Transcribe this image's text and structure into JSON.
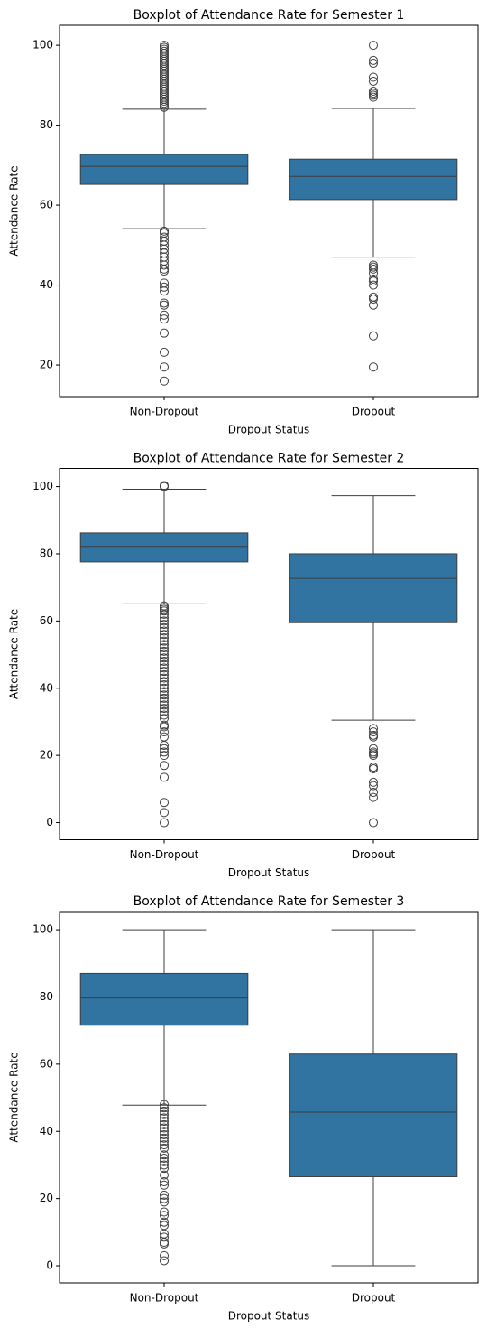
{
  "chart_data": [
    {
      "type": "box",
      "title": "Boxplot of Attendance Rate for Semester 1",
      "xlabel": "Dropout Status",
      "ylabel": "Attendance Rate",
      "categories": [
        "Non-Dropout",
        "Dropout"
      ],
      "color": "#3274a1",
      "ylim": [
        12.1,
        105
      ],
      "yticks": [
        20,
        40,
        60,
        80,
        100
      ],
      "boxes": [
        {
          "whislo": 54.1,
          "q1": 65.2,
          "median": 69.7,
          "q3": 72.7,
          "whishi": 84,
          "fliers": [
            84.5,
            85,
            85.5,
            86,
            86.5,
            87,
            87.5,
            88,
            88.5,
            89,
            89.5,
            90,
            90.5,
            91,
            91.5,
            92,
            92.5,
            93,
            93.5,
            94,
            94.5,
            95,
            95.5,
            96,
            96.5,
            97,
            97.5,
            98,
            98.5,
            99,
            99.5,
            100,
            53.5,
            53,
            52,
            51,
            50,
            49,
            48,
            47,
            46,
            45,
            44,
            43.5,
            40.5,
            39.5,
            38.5,
            35.5,
            35,
            32.5,
            31.5,
            28,
            23.2,
            19.5,
            16
          ]
        },
        {
          "whislo": 47,
          "q1": 61.4,
          "median": 67.2,
          "q3": 71.5,
          "whishi": 84.2,
          "fliers": [
            100,
            96.2,
            95.5,
            92,
            91,
            88.5,
            88,
            87.5,
            87,
            45,
            44.5,
            44,
            43,
            41.5,
            41,
            40,
            37,
            36.5,
            35,
            27.3,
            19.5
          ]
        }
      ]
    },
    {
      "type": "box",
      "title": "Boxplot of Attendance Rate for Semester 2",
      "xlabel": "Dropout Status",
      "ylabel": "Attendance Rate",
      "categories": [
        "Non-Dropout",
        "Dropout"
      ],
      "color": "#3274a1",
      "ylim": [
        -5.1,
        105.4
      ],
      "yticks": [
        0,
        20,
        40,
        60,
        80,
        100
      ],
      "boxes": [
        {
          "whislo": 65.1,
          "q1": 77.6,
          "median": 82.2,
          "q3": 86.2,
          "whishi": 99.2,
          "fliers": [
            100,
            100.3,
            64.5,
            64,
            63.5,
            63,
            62,
            61,
            60,
            59,
            58,
            57,
            56,
            55,
            54,
            53,
            52,
            51,
            50,
            49,
            48,
            47,
            46,
            45,
            44,
            43,
            42,
            41,
            40,
            39,
            38,
            37,
            36,
            35,
            34,
            33,
            32,
            31,
            29,
            28.5,
            27,
            25.5,
            23,
            22,
            21,
            20,
            17,
            13.5,
            6,
            3,
            0
          ]
        },
        {
          "whislo": 30.5,
          "q1": 59.5,
          "median": 72.7,
          "q3": 80,
          "whishi": 97.3,
          "fliers": [
            28,
            27,
            26,
            25.5,
            22,
            21,
            20.5,
            20,
            16.5,
            16,
            12,
            11,
            9,
            7.5,
            0
          ]
        }
      ]
    },
    {
      "type": "box",
      "title": "Boxplot of Attendance Rate for Semester 3",
      "xlabel": "Dropout Status",
      "ylabel": "Attendance Rate",
      "categories": [
        "Non-Dropout",
        "Dropout"
      ],
      "color": "#3274a1",
      "ylim": [
        -5.1,
        105.4
      ],
      "yticks": [
        0,
        20,
        40,
        60,
        80,
        100
      ],
      "boxes": [
        {
          "whislo": 47.8,
          "q1": 71.6,
          "median": 79.7,
          "q3": 87,
          "whishi": 100,
          "fliers": [
            48,
            47,
            46,
            45,
            44,
            43,
            42,
            41,
            40,
            39,
            38,
            37,
            36,
            35,
            33,
            32,
            31,
            30,
            29,
            27,
            25,
            24,
            21,
            20,
            19,
            16,
            15,
            13,
            12,
            9.5,
            8.5,
            7,
            6.5,
            3,
            1.5
          ]
        },
        {
          "whislo": 0,
          "q1": 26.5,
          "median": 45.7,
          "q3": 63,
          "whishi": 100,
          "fliers": []
        }
      ]
    }
  ]
}
